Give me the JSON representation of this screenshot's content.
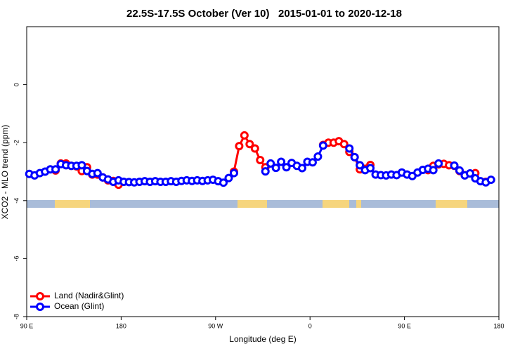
{
  "chart_data": {
    "type": "line",
    "title": "22.5S-17.5S October (Ver 10)   2015-01-01 to 2020-12-18",
    "xlabel": "Longitude (deg E)",
    "ylabel": "XCO2 - MLO trend (ppm)",
    "x": [
      92.5,
      97.5,
      102.5,
      107.5,
      112.5,
      117.5,
      122.5,
      127.5,
      132.5,
      137.5,
      142.5,
      147.5,
      152.5,
      157.5,
      162.5,
      167.5,
      172.5,
      177.5,
      182.5,
      187.5,
      192.5,
      197.5,
      202.5,
      207.5,
      212.5,
      217.5,
      222.5,
      227.5,
      232.5,
      237.5,
      242.5,
      247.5,
      252.5,
      257.5,
      262.5,
      267.5,
      272.5,
      277.5,
      282.5,
      287.5,
      292.5,
      297.5,
      302.5,
      307.5,
      312.5,
      317.5,
      322.5,
      327.5,
      332.5,
      337.5,
      342.5,
      347.5,
      352.5,
      357.5,
      362.5,
      367.5,
      372.5,
      377.5,
      382.5,
      387.5,
      392.5,
      397.5,
      402.5,
      407.5,
      412.5,
      417.5,
      422.5,
      427.5,
      432.5,
      437.5,
      442.5,
      447.5,
      452.5,
      457.5,
      462.5,
      467.5,
      472.5,
      477.5,
      482.5,
      487.5,
      492.5,
      497.5,
      502.5,
      507.5,
      512.5,
      517.5,
      522.5,
      527.5,
      532.5,
      537.5
    ],
    "series": [
      {
        "name": "Land (Nadir&Glint)",
        "color": "#ff0000",
        "values": [
          null,
          null,
          null,
          null,
          null,
          -2.96,
          -2.72,
          -2.72,
          -2.8,
          -2.82,
          -2.98,
          -2.85,
          -3.1,
          -3.1,
          -3.2,
          -3.3,
          -3.32,
          -3.45,
          null,
          null,
          null,
          null,
          null,
          null,
          null,
          null,
          null,
          null,
          null,
          null,
          null,
          null,
          null,
          null,
          null,
          null,
          null,
          null,
          null,
          -3.0,
          -2.12,
          -1.75,
          -2.05,
          -2.2,
          -2.6,
          -2.85,
          null,
          null,
          null,
          null,
          null,
          null,
          null,
          null,
          null,
          null,
          -2.08,
          -2.0,
          -2.0,
          -1.95,
          -2.05,
          -2.32,
          -2.5,
          -2.92,
          -2.9,
          -2.77,
          null,
          null,
          null,
          null,
          null,
          null,
          null,
          null,
          null,
          null,
          -2.95,
          -2.8,
          -2.75,
          -2.73,
          -2.78,
          -2.8,
          -2.98,
          -3.12,
          null,
          -3.05,
          null,
          -3.35,
          null,
          null
        ]
      },
      {
        "name": "Ocean (Glint)",
        "color": "#0000ff",
        "values": [
          -3.08,
          -3.13,
          -3.05,
          -3.0,
          -2.92,
          -2.92,
          -2.74,
          -2.78,
          -2.8,
          -2.8,
          -2.78,
          -2.98,
          -3.08,
          -3.05,
          -3.2,
          -3.27,
          -3.35,
          -3.3,
          -3.35,
          -3.36,
          -3.37,
          -3.35,
          -3.33,
          -3.35,
          -3.33,
          -3.35,
          -3.35,
          -3.33,
          -3.35,
          -3.32,
          -3.3,
          -3.32,
          -3.3,
          -3.32,
          -3.3,
          -3.28,
          -3.33,
          -3.38,
          -3.22,
          -3.05,
          null,
          null,
          null,
          null,
          null,
          -2.99,
          -2.72,
          -2.87,
          -2.66,
          -2.85,
          -2.7,
          -2.8,
          -2.88,
          -2.66,
          -2.68,
          -2.48,
          -2.1,
          null,
          null,
          null,
          null,
          -2.2,
          -2.5,
          -2.78,
          -2.95,
          -2.88,
          -3.1,
          -3.12,
          -3.13,
          -3.1,
          -3.12,
          -3.03,
          -3.1,
          -3.15,
          -3.03,
          -2.94,
          -2.9,
          -2.95,
          -2.72,
          null,
          null,
          -2.79,
          -2.96,
          -3.13,
          -3.06,
          -3.23,
          -3.33,
          -3.37,
          -3.28,
          null
        ]
      }
    ],
    "xlim": [
      90,
      540
    ],
    "xticks": [
      {
        "value": 90,
        "label": "90 E"
      },
      {
        "value": 180,
        "label": "180"
      },
      {
        "value": 270,
        "label": "90 W"
      },
      {
        "value": 360,
        "label": "0"
      },
      {
        "value": 450,
        "label": "90 E"
      },
      {
        "value": 540,
        "label": "180"
      }
    ],
    "ylim": [
      -8,
      2
    ],
    "yticks": [
      -8,
      -6,
      -4,
      -2,
      0
    ],
    "legend": "bottom-left"
  }
}
